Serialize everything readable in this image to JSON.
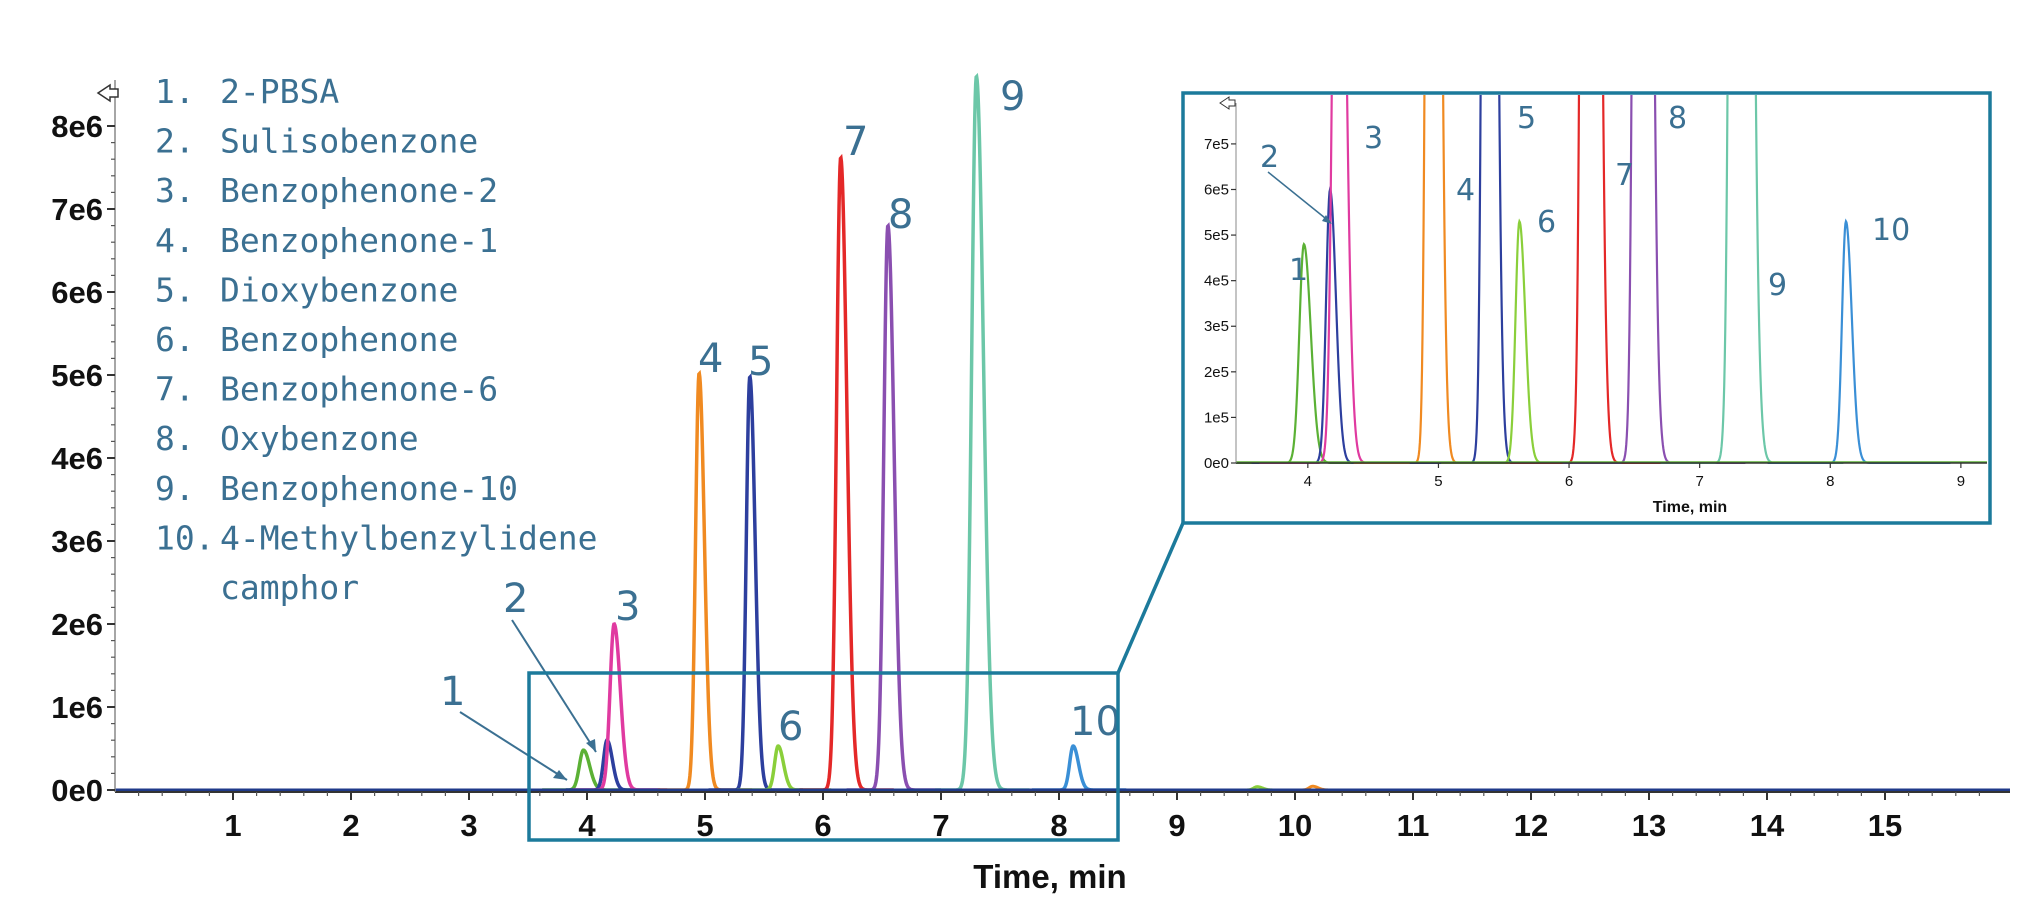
{
  "chart_data": {
    "type": "line",
    "subtype": "chromatogram",
    "xlabel": "Time, min",
    "ylabel": "",
    "xlim": [
      0,
      16
    ],
    "ylim": [
      0,
      8700000
    ],
    "x_ticks": [
      "1",
      "2",
      "3",
      "4",
      "5",
      "6",
      "7",
      "8",
      "9",
      "10",
      "11",
      "12",
      "13",
      "14",
      "15"
    ],
    "y_ticks": [
      "0e0",
      "1e6",
      "2e6",
      "3e6",
      "4e6",
      "5e6",
      "6e6",
      "7e6",
      "8e6"
    ],
    "grid": false,
    "legend_position": "top-left",
    "legend": [
      {
        "num": "1.",
        "name": "2-PBSA"
      },
      {
        "num": "2.",
        "name": "Sulisobenzone"
      },
      {
        "num": "3.",
        "name": "Benzophenone-2"
      },
      {
        "num": "4.",
        "name": "Benzophenone-1"
      },
      {
        "num": "5.",
        "name": "Dioxybenzone"
      },
      {
        "num": "6.",
        "name": "Benzophenone"
      },
      {
        "num": "7.",
        "name": "Benzophenone-6"
      },
      {
        "num": "8.",
        "name": "Oxybenzone"
      },
      {
        "num": "9.",
        "name": "Benzophenone-10"
      },
      {
        "num": "10.",
        "name": "4-Methylbenzylidene"
      },
      {
        "num": "",
        "name": "camphor"
      }
    ],
    "series": [
      {
        "label": "1",
        "retention_time": 3.97,
        "height": 480000,
        "width": 0.035,
        "color": "#5bb135"
      },
      {
        "label": "2",
        "retention_time": 4.17,
        "height": 600000,
        "width": 0.03,
        "color": "#2d3f9e"
      },
      {
        "label": "3",
        "retention_time": 4.23,
        "height": 2000000,
        "width": 0.035,
        "color": "#e03aa0"
      },
      {
        "label": "4",
        "retention_time": 4.95,
        "height": 5020000,
        "width": 0.03,
        "color": "#f08a21"
      },
      {
        "label": "5",
        "retention_time": 5.38,
        "height": 4980000,
        "width": 0.03,
        "color": "#2d3f9e"
      },
      {
        "label": "6",
        "retention_time": 5.62,
        "height": 530000,
        "width": 0.03,
        "color": "#8acf3a"
      },
      {
        "label": "7",
        "retention_time": 6.15,
        "height": 7620000,
        "width": 0.035,
        "color": "#e42828"
      },
      {
        "label": "8",
        "retention_time": 6.55,
        "height": 6800000,
        "width": 0.035,
        "color": "#8a4fb0"
      },
      {
        "label": "9",
        "retention_time": 7.3,
        "height": 8600000,
        "width": 0.04,
        "color": "#6cc7a8"
      },
      {
        "label": "10",
        "retention_time": 8.12,
        "height": 530000,
        "width": 0.03,
        "color": "#3a8fd6"
      }
    ],
    "minor_peaks": [
      {
        "retention_time": 9.68,
        "height": 40000,
        "color": "#8acf3a"
      },
      {
        "retention_time": 10.15,
        "height": 45000,
        "color": "#f08a21"
      }
    ],
    "inset": {
      "xlabel": "Time, min",
      "xlim": [
        3.45,
        9.2
      ],
      "ylim": [
        0,
        770000
      ],
      "x_ticks": [
        "4",
        "5",
        "6",
        "7",
        "8",
        "9"
      ],
      "y_ticks": [
        "0e0",
        "1e5",
        "2e5",
        "3e5",
        "4e5",
        "5e5",
        "6e5",
        "7e5"
      ]
    }
  }
}
